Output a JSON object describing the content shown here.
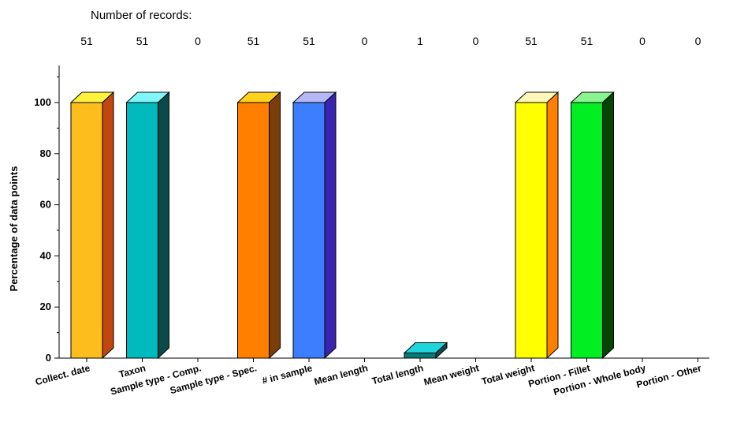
{
  "chart_data": {
    "type": "bar",
    "records_title": "Number of records:",
    "ylabel": "Percentage of data points",
    "xlabel": "",
    "ylim": [
      0,
      115
    ],
    "yticks": [
      0,
      20,
      40,
      60,
      80,
      100
    ],
    "yticks_text": [
      "0",
      "20",
      "40",
      "60",
      "80",
      "100"
    ],
    "bar_style": "3d",
    "grid": false,
    "categories": [
      "Collect. date",
      "Taxon",
      "Sample type - Comp.",
      "Sample type - Spec.",
      "# in sample",
      "Mean length",
      "Total length",
      "Mean weight",
      "Total weight",
      "Portion - Fillet",
      "Portion - Whole body",
      "Portion - Other"
    ],
    "record_counts": [
      51,
      51,
      0,
      51,
      51,
      0,
      1,
      0,
      51,
      51,
      0,
      0
    ],
    "record_counts_text": [
      "51",
      "51",
      "0",
      "51",
      "51",
      "0",
      "1",
      "0",
      "51",
      "51",
      "0",
      "0"
    ],
    "values": [
      100,
      100,
      0,
      100,
      100,
      0,
      2,
      0,
      100,
      100,
      0,
      0
    ],
    "colors": [
      {
        "front": "#FDBD1C",
        "top": "#FEF33A",
        "side": "#C2470E"
      },
      {
        "front": "#00BABE",
        "top": "#7FF6FA",
        "side": "#0B4A4A"
      },
      {
        "front": "#cccccc",
        "top": "#eeeeee",
        "side": "#888888"
      },
      {
        "front": "#FF8000",
        "top": "#FFD21C",
        "side": "#7A3E0A"
      },
      {
        "front": "#3D7EFF",
        "top": "#B5B8F5",
        "side": "#3A23B0"
      },
      {
        "front": "#cccccc",
        "top": "#eeeeee",
        "side": "#888888"
      },
      {
        "front": "#067A7A",
        "top": "#1FD5DC",
        "side": "#0A4C4C"
      },
      {
        "front": "#cccccc",
        "top": "#eeeeee",
        "side": "#888888"
      },
      {
        "front": "#FFFF00",
        "top": "#FFF8B8",
        "side": "#FF8000"
      },
      {
        "front": "#00EE22",
        "top": "#88F590",
        "side": "#034503"
      },
      {
        "front": "#cccccc",
        "top": "#eeeeee",
        "side": "#888888"
      },
      {
        "front": "#cccccc",
        "top": "#eeeeee",
        "side": "#888888"
      }
    ]
  }
}
